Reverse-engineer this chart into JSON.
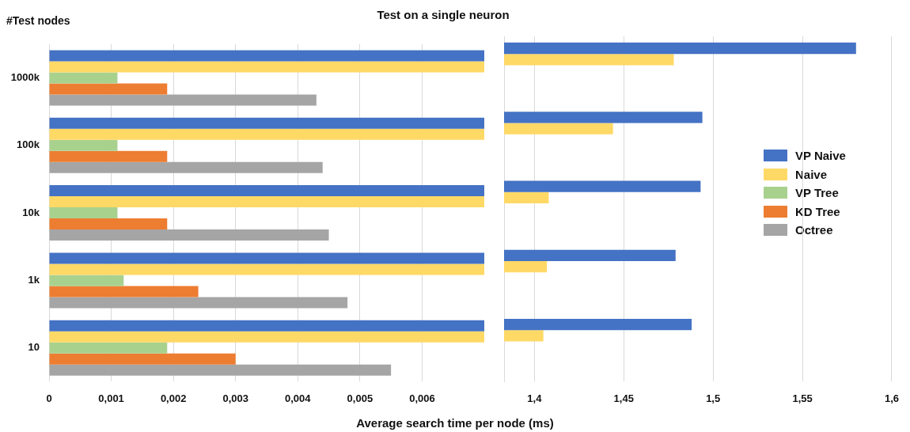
{
  "chart_data": [
    {
      "type": "bar",
      "orientation": "horizontal",
      "title": "Test on a single neuron",
      "xlabel": "Average search time per node (ms)",
      "ylabel": "#Test nodes",
      "categories": [
        "1000k",
        "100k",
        "10k",
        "1k",
        "10"
      ],
      "series": [
        {
          "name": "VP Naive",
          "color": "#4472c4",
          "values": [
            0.007,
            0.007,
            0.007,
            0.007,
            0.007
          ]
        },
        {
          "name": "Naive",
          "color": "#ffd966",
          "values": [
            0.007,
            0.007,
            0.007,
            0.007,
            0.007
          ]
        },
        {
          "name": "VP Tree",
          "color": "#a9d18e",
          "values": [
            0.0011,
            0.0011,
            0.0011,
            0.0012,
            0.0019
          ]
        },
        {
          "name": "KD Tree",
          "color": "#ed7d31",
          "values": [
            0.0019,
            0.0019,
            0.0019,
            0.0024,
            0.003
          ]
        },
        {
          "name": "Octree",
          "color": "#a5a5a5",
          "values": [
            0.0043,
            0.0044,
            0.0045,
            0.0048,
            0.0055
          ]
        }
      ],
      "xlim": [
        0,
        0.007
      ],
      "xticks": [
        0,
        {
          "value": 0.001,
          "label": "0,001"
        },
        {
          "value": 0.002,
          "label": "0,002"
        },
        {
          "value": 0.003,
          "label": "0,003"
        },
        {
          "value": 0.004,
          "label": "0,004"
        },
        {
          "value": 0.005,
          "label": "0,005"
        },
        {
          "value": 0.006,
          "label": "0,006"
        }
      ],
      "grid": "x",
      "legend": "right"
    },
    {
      "type": "bar",
      "orientation": "horizontal",
      "categories": [
        null,
        null,
        null,
        null,
        null
      ],
      "series": [
        {
          "color": "#4472c4",
          "values": [
            1.58,
            1.494,
            1.493,
            1.479,
            1.488
          ]
        },
        {
          "color": "#ffd966",
          "values": [
            1.478,
            1.444,
            1.408,
            1.407,
            1.405
          ]
        },
        {
          "color": "#a9d18e",
          "values": [
            null,
            null,
            null,
            null,
            null
          ]
        },
        {
          "color": "#ed7d31",
          "values": [
            null,
            null,
            null,
            null,
            null
          ]
        },
        {
          "color": "#a5a5a5",
          "values": [
            null,
            null,
            null,
            null,
            null
          ]
        }
      ],
      "xlim": [
        1.383,
        1.6
      ],
      "xticks": [
        {
          "value": 1.4,
          "label": "1,4"
        },
        {
          "value": 1.45,
          "label": "1,45"
        },
        {
          "value": 1.5,
          "label": "1,5"
        },
        {
          "value": 1.55,
          "label": "1,55"
        },
        {
          "value": 1.6,
          "label": "1,6"
        }
      ],
      "grid": "x",
      "tick_labels": "x"
    }
  ]
}
